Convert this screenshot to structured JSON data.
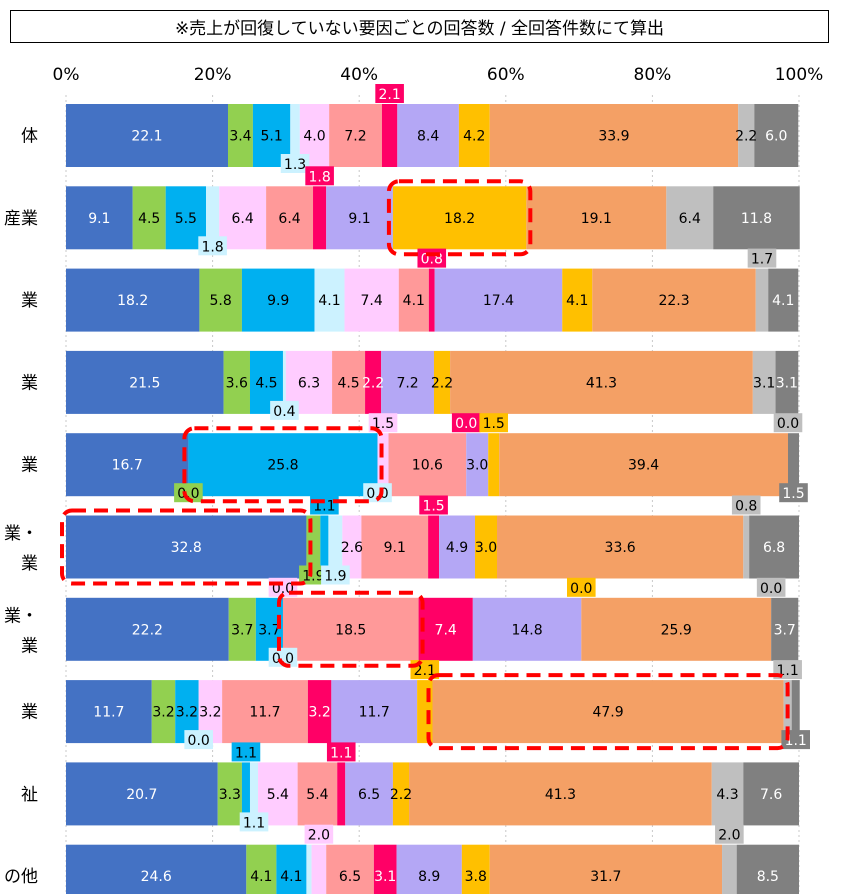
{
  "chart_data": {
    "type": "bar",
    "stacked": true,
    "orientation": "horizontal",
    "title": "※売上が回復していない要因ごとの回答数 / 全回答件数にて算出",
    "x_tick_labels": [
      "0%",
      "20%",
      "40%",
      "60%",
      "80%",
      "100%"
    ],
    "xlim": [
      0,
      100
    ],
    "categories": [
      "体",
      "産業",
      "業",
      "業",
      "業",
      "業・\n業",
      "業・\n業",
      "業",
      "祉",
      "の他"
    ],
    "series_colors": [
      "#4472C4",
      "#92D050",
      "#00B0F0",
      "#CCF2FF",
      "#FFCCFF",
      "#FF9999",
      "#FF0066",
      "#B4A7F5",
      "#FFC000",
      "#F4A065",
      "#BFBFBF",
      "#808080"
    ],
    "rows": [
      [
        22.1,
        3.4,
        5.1,
        1.3,
        4.0,
        7.2,
        2.1,
        8.4,
        4.2,
        33.9,
        2.2,
        6.0
      ],
      [
        9.1,
        4.5,
        5.5,
        1.8,
        6.4,
        6.4,
        1.8,
        9.1,
        18.2,
        19.1,
        6.4,
        11.8
      ],
      [
        18.2,
        5.8,
        9.9,
        4.1,
        7.4,
        4.1,
        0.8,
        17.4,
        4.1,
        22.3,
        1.7,
        4.1
      ],
      [
        21.5,
        3.6,
        4.5,
        0.4,
        6.3,
        4.5,
        2.2,
        7.2,
        2.2,
        41.3,
        3.1,
        3.1
      ],
      [
        16.7,
        0.0,
        25.8,
        0.0,
        1.5,
        10.6,
        0.0,
        3.0,
        1.5,
        39.4,
        0.0,
        1.5
      ],
      [
        32.8,
        1.9,
        1.1,
        1.9,
        2.6,
        9.1,
        1.5,
        4.9,
        3.0,
        33.6,
        0.8,
        6.8
      ],
      [
        22.2,
        3.7,
        3.7,
        0.0,
        0.0,
        18.5,
        7.4,
        14.8,
        0.0,
        25.9,
        0.0,
        3.7
      ],
      [
        11.7,
        3.2,
        3.2,
        0.0,
        3.2,
        11.7,
        3.2,
        11.7,
        2.1,
        47.9,
        1.1,
        1.1
      ],
      [
        20.7,
        3.3,
        1.1,
        1.1,
        5.4,
        5.4,
        1.1,
        6.5,
        2.2,
        41.3,
        4.3,
        7.6
      ],
      [
        24.6,
        4.1,
        4.1,
        0.7,
        2.0,
        6.5,
        3.1,
        8.9,
        3.8,
        31.7,
        2.0,
        8.5
      ]
    ],
    "highlights": [
      {
        "row": 1,
        "segment": 8
      },
      {
        "row": 4,
        "segment": 2
      },
      {
        "row": 5,
        "segment": 0
      },
      {
        "row": 6,
        "segment": 5
      },
      {
        "row": 7,
        "segment": 9
      }
    ],
    "grid": true,
    "legend": "none"
  }
}
